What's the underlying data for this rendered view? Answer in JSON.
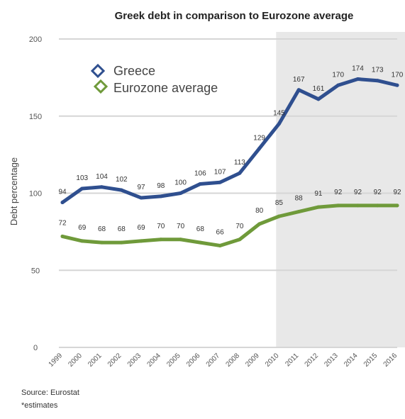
{
  "chart_data": {
    "type": "line",
    "title": "Greek debt in comparison to Eurozone average",
    "ylabel": "Debt percentage",
    "xlabel": "",
    "ylim": [
      0,
      200
    ],
    "yticks": [
      "0",
      "50",
      "100",
      "150",
      "200"
    ],
    "categories": [
      "1999",
      "2000",
      "2001",
      "2002",
      "2003",
      "2004",
      "2005",
      "2006",
      "2007",
      "2008",
      "2009",
      "2010",
      "2011",
      "2012",
      "2013",
      "2014",
      "2015",
      "2016"
    ],
    "projection_start_index": 12,
    "series": [
      {
        "name": "Greece",
        "color": "#2f4f8f",
        "values": [
          94,
          103,
          104,
          102,
          97,
          98,
          100,
          106,
          107,
          113,
          129,
          145,
          167,
          161,
          170,
          174,
          173,
          170
        ],
        "labels": [
          "94",
          "103",
          "104",
          "102",
          "97",
          "98",
          "100",
          "106",
          "107",
          "113",
          "129",
          "145",
          "167",
          "161",
          "170",
          "174",
          "173",
          "170"
        ]
      },
      {
        "name": "Eurozone average",
        "color": "#6f9a3a",
        "values": [
          72,
          69,
          68,
          68,
          69,
          70,
          70,
          68,
          66,
          70,
          80,
          85,
          88,
          91,
          92,
          92,
          92,
          92
        ],
        "labels": [
          "72",
          "69",
          "68",
          "68",
          "69",
          "70",
          "70",
          "68",
          "66",
          "70",
          "80",
          "85",
          "88",
          "91",
          "92",
          "92",
          "92",
          "92"
        ]
      }
    ],
    "grid": true,
    "legend_position": "top-left"
  },
  "footer": {
    "source": "Source: Eurostat",
    "note": "*estimates"
  }
}
